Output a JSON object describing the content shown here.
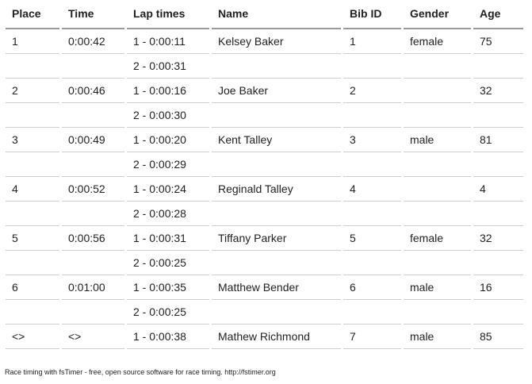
{
  "table": {
    "headers": [
      "Place",
      "Time",
      "Lap times",
      "Name",
      "Bib ID",
      "Gender",
      "Age"
    ],
    "rows": [
      [
        "1",
        "0:00:42",
        "1 - 0:00:11",
        "Kelsey Baker",
        "1",
        "female",
        "75"
      ],
      [
        "",
        "",
        "2 - 0:00:31",
        "",
        "",
        "",
        ""
      ],
      [
        "2",
        "0:00:46",
        "1 - 0:00:16",
        "Joe Baker",
        "2",
        "",
        "32"
      ],
      [
        "",
        "",
        "2 - 0:00:30",
        "",
        "",
        "",
        ""
      ],
      [
        "3",
        "0:00:49",
        "1 - 0:00:20",
        "Kent Talley",
        "3",
        "male",
        "81"
      ],
      [
        "",
        "",
        "2 - 0:00:29",
        "",
        "",
        "",
        ""
      ],
      [
        "4",
        "0:00:52",
        "1 - 0:00:24",
        "Reginald Talley",
        "4",
        "",
        "4"
      ],
      [
        "",
        "",
        "2 - 0:00:28",
        "",
        "",
        "",
        ""
      ],
      [
        "5",
        "0:00:56",
        "1 - 0:00:31",
        "Tiffany Parker",
        "5",
        "female",
        "32"
      ],
      [
        "",
        "",
        "2 - 0:00:25",
        "",
        "",
        "",
        ""
      ],
      [
        "6",
        "0:01:00",
        "1 - 0:00:35",
        "Matthew Bender",
        "6",
        "male",
        "16"
      ],
      [
        "",
        "",
        "2 - 0:00:25",
        "",
        "",
        "",
        ""
      ],
      [
        "<>",
        "<>",
        "1 - 0:00:38",
        "Mathew Richmond",
        "7",
        "male",
        "85"
      ]
    ]
  },
  "footer": {
    "text": "Race timing with fsTimer - free, open source software for race timing. http://fstimer.org"
  }
}
